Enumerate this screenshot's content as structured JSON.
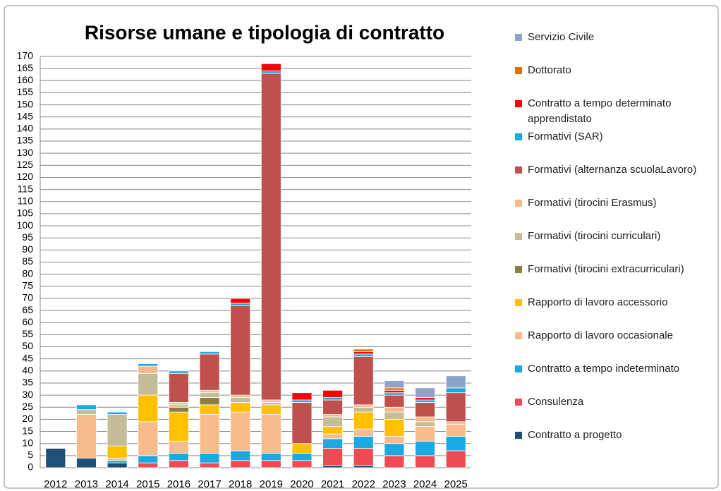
{
  "chart_data": {
    "type": "stacked_bar",
    "title": "Risorse umane e tipologia di contratto",
    "categories": [
      "2012",
      "2013",
      "2014",
      "2015",
      "2016",
      "2017",
      "2018",
      "2019",
      "2020",
      "2021",
      "2022",
      "2023",
      "2024",
      "2025"
    ],
    "ylim": [
      0,
      170
    ],
    "yticks": [
      0,
      5,
      10,
      15,
      20,
      25,
      30,
      35,
      40,
      45,
      50,
      55,
      60,
      65,
      70,
      75,
      80,
      85,
      90,
      95,
      100,
      105,
      110,
      115,
      120,
      125,
      130,
      135,
      140,
      145,
      150,
      155,
      160,
      165,
      170
    ],
    "grid": true,
    "series": [
      {
        "name": "Contratto a progetto",
        "color": "#1f4e79",
        "values": [
          8,
          4,
          2,
          0,
          0,
          0,
          0,
          0,
          0,
          1,
          1,
          0,
          0,
          0
        ]
      },
      {
        "name": "Consulenza",
        "color": "#ef4b55",
        "values": [
          0,
          0,
          0,
          2,
          3,
          2,
          3,
          3,
          3,
          7,
          7,
          5,
          5,
          7
        ]
      },
      {
        "name": "Contratto a tempo indeterminato",
        "color": "#1aa9e3",
        "values": [
          0,
          0,
          1,
          3,
          3,
          4,
          4,
          3,
          3,
          4,
          5,
          5,
          6,
          6
        ]
      },
      {
        "name": "Rapporto di lavoro occasionale",
        "color": "#f8bc8c",
        "values": [
          0,
          18,
          1,
          14,
          5,
          16,
          16,
          16,
          0,
          2,
          3,
          3,
          6,
          5
        ]
      },
      {
        "name": "Rapporto di lavoro accessorio",
        "color": "#ffc000",
        "values": [
          0,
          0,
          5,
          11,
          12,
          4,
          4,
          4,
          4,
          3,
          7,
          7,
          0,
          0
        ]
      },
      {
        "name": "Formativi (tirocini extracurriculari)",
        "color": "#8c7e3c",
        "values": [
          0,
          0,
          0,
          0,
          2,
          3,
          0,
          0,
          0,
          0,
          0,
          0,
          0,
          0
        ]
      },
      {
        "name": "Formativi (tirocini curriculari)",
        "color": "#c4bd97",
        "values": [
          0,
          2,
          13,
          9,
          1,
          2,
          2,
          1,
          0,
          4,
          2,
          3,
          2,
          0
        ]
      },
      {
        "name": "Formativi (tirocini Erasmus)",
        "color": "#f6b98b",
        "values": [
          0,
          0,
          0,
          3,
          1,
          1,
          1,
          1,
          0,
          1,
          1,
          2,
          2,
          1
        ]
      },
      {
        "name": "Formativi (alternanza scuolaLavoro)",
        "color": "#c0504d",
        "values": [
          0,
          0,
          0,
          0,
          12,
          15,
          37,
          135,
          17,
          6,
          20,
          5,
          6,
          12
        ]
      },
      {
        "name": "Formativi (SAR)",
        "color": "#1aa9e3",
        "values": [
          0,
          2,
          1,
          1,
          1,
          1,
          1,
          1,
          1,
          1,
          1,
          1,
          1,
          2
        ]
      },
      {
        "name": "Contratto a tempo determinato apprendistato",
        "color": "#ff0000",
        "values": [
          0,
          0,
          0,
          0,
          0,
          0,
          2,
          3,
          3,
          3,
          1,
          1,
          1,
          0
        ]
      },
      {
        "name": "Dottorato",
        "color": "#e46c0a",
        "values": [
          0,
          0,
          0,
          0,
          0,
          0,
          0,
          0,
          0,
          0,
          1,
          1,
          0,
          0
        ]
      },
      {
        "name": "Servizio Civile",
        "color": "#8ea3c8",
        "values": [
          0,
          0,
          0,
          0,
          0,
          0,
          0,
          0,
          0,
          0,
          0,
          3,
          4,
          5
        ]
      }
    ]
  }
}
